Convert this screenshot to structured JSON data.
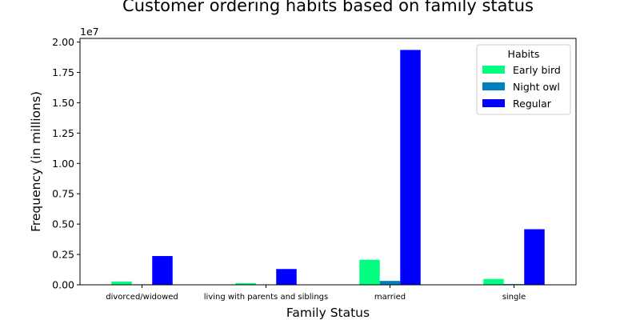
{
  "chart_data": {
    "type": "bar",
    "title": "Customer ordering habits based on family status",
    "xlabel": "Family Status",
    "ylabel": "Frequency (in millions)",
    "offset_label": "1e7",
    "categories": [
      "divorced/widowed",
      "living with parents and siblings",
      "married",
      "single"
    ],
    "series": [
      {
        "name": "Early bird",
        "color": "#00ff80",
        "values": [
          270000,
          140000,
          2060000,
          480000
        ]
      },
      {
        "name": "Night owl",
        "color": "#0080bf",
        "values": [
          40000,
          20000,
          320000,
          60000
        ]
      },
      {
        "name": "Regular",
        "color": "#0000ff",
        "values": [
          2370000,
          1300000,
          19350000,
          4580000
        ]
      }
    ],
    "ylim": [
      0,
      20300000
    ],
    "yticks": [
      {
        "value": 0,
        "label": "0.00"
      },
      {
        "value": 2500000,
        "label": "0.25"
      },
      {
        "value": 5000000,
        "label": "0.50"
      },
      {
        "value": 7500000,
        "label": "0.75"
      },
      {
        "value": 10000000,
        "label": "1.00"
      },
      {
        "value": 12500000,
        "label": "1.25"
      },
      {
        "value": 15000000,
        "label": "1.50"
      },
      {
        "value": 17500000,
        "label": "1.75"
      },
      {
        "value": 20000000,
        "label": "2.00"
      }
    ],
    "legend": {
      "title": "Habits",
      "position": "top-right"
    },
    "grid": false
  }
}
